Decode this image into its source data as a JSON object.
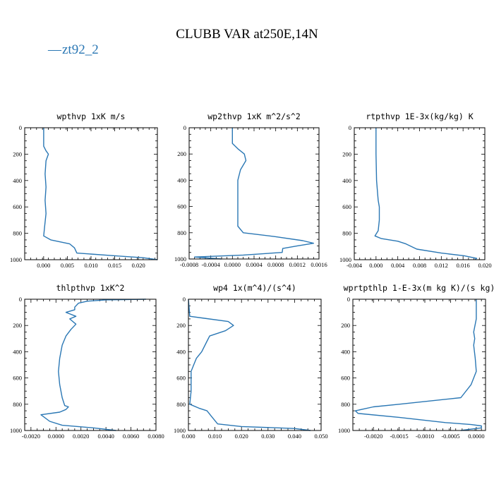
{
  "figure": {
    "title": "CLUBB VAR at250E,14N",
    "legend": {
      "symbol": "—",
      "label": "zt92_2",
      "color": "#2a77b4"
    }
  },
  "chart_data": [
    {
      "type": "line",
      "title": "wpthvp  1xK m/s",
      "xlim": [
        -0.004,
        0.024
      ],
      "xticks": [
        "0.000",
        "0.005",
        "0.010",
        "0.015",
        "0.020"
      ],
      "xtick_values": [
        0,
        0.005,
        0.01,
        0.015,
        0.02
      ],
      "ylim": [
        1000,
        0
      ],
      "yticks": [
        "0",
        "200",
        "400",
        "600",
        "800",
        "1000"
      ],
      "ytick_values": [
        0,
        200,
        400,
        600,
        800,
        1000
      ],
      "series": [
        {
          "x": [
            0,
            0,
            0.0005,
            0.001,
            0.0005,
            0.0003,
            0.0005,
            0.0003,
            0.0005,
            0.0002,
            0,
            0.0015,
            0.0055,
            0.0065,
            0.007,
            0.015,
            0.021,
            0.024
          ],
          "y": [
            0,
            140,
            175,
            200,
            250,
            350,
            450,
            550,
            650,
            750,
            820,
            850,
            880,
            910,
            950,
            970,
            985,
            1000
          ]
        }
      ]
    },
    {
      "type": "line",
      "title": "wp2thvp  1xK m^2/s^2",
      "xlim": [
        -0.0008,
        0.0016
      ],
      "xticks": [
        "-0.0008",
        "-0.0004",
        "0.0000",
        "0.0004",
        "0.0008",
        "0.0012",
        "0.0016"
      ],
      "xtick_values": [
        -0.0008,
        -0.0004,
        0,
        0.0004,
        0.0008,
        0.0012,
        0.0016
      ],
      "ylim": [
        1000,
        0
      ],
      "yticks": [
        "0",
        "200",
        "400",
        "600",
        "800",
        "1000"
      ],
      "ytick_values": [
        0,
        200,
        400,
        600,
        800,
        1000
      ],
      "series": [
        {
          "x": [
            0,
            0,
            0.0001,
            0.00022,
            0.00025,
            0.00015,
            0.0001,
            0.0001,
            0.0001,
            0.0001,
            0.0002,
            0.0008,
            0.0013,
            0.0015,
            0.0012,
            0.00093,
            0.00092,
            0.0002,
            -0.0007,
            -0.0002
          ],
          "y": [
            0,
            120,
            160,
            200,
            250,
            320,
            400,
            500,
            600,
            750,
            800,
            830,
            860,
            880,
            900,
            920,
            950,
            970,
            985,
            1000
          ]
        }
      ]
    },
    {
      "type": "line",
      "title": "rtpthvp  1E-3x(kg/kg) K",
      "xlim": [
        -0.004,
        0.02
      ],
      "xticks": [
        "-0.004",
        "0.000",
        "0.004",
        "0.008",
        "0.012",
        "0.016",
        "0.020"
      ],
      "xtick_values": [
        -0.004,
        0,
        0.004,
        0.008,
        0.012,
        0.016,
        0.02
      ],
      "ylim": [
        1000,
        0
      ],
      "yticks": [
        "0",
        "200",
        "400",
        "600",
        "800",
        "1000"
      ],
      "ytick_values": [
        0,
        200,
        400,
        600,
        800,
        1000
      ],
      "series": [
        {
          "x": [
            0,
            0,
            0.0001,
            0.0003,
            0.0004,
            0.0006,
            0.0006,
            0.0004,
            0.0001,
            -0.0002,
            0.001,
            0.004,
            0.0055,
            0.0075,
            0.012,
            0.0162,
            0.0185,
            0.0182
          ],
          "y": [
            0,
            200,
            400,
            500,
            550,
            600,
            700,
            780,
            800,
            820,
            840,
            860,
            880,
            920,
            950,
            970,
            990,
            1000
          ]
        }
      ]
    },
    {
      "type": "line",
      "title": "thlpthvp  1xK^2",
      "xlim": [
        -0.0025,
        0.008
      ],
      "xticks": [
        "-0.0020",
        "0.0000",
        "0.0020",
        "0.0040",
        "0.0060",
        "0.0080"
      ],
      "xtick_values": [
        -0.002,
        0,
        0.002,
        0.004,
        0.006,
        0.008
      ],
      "ylim": [
        1000,
        0
      ],
      "yticks": [
        "0",
        "200",
        "400",
        "600",
        "800",
        "1000"
      ],
      "ytick_values": [
        0,
        200,
        400,
        600,
        800,
        1000
      ],
      "series": [
        {
          "x": [
            0.0072,
            0.004,
            0.0025,
            0.0018,
            0.0015,
            0.0015,
            0.0008,
            0.0016,
            0.0011,
            0.0016,
            0.0012,
            0.0008,
            0.0005,
            0.0003,
            0.0002,
            0.0003,
            0.0005,
            0.0007,
            0.001,
            0.0008,
            0.0003,
            -0.0012,
            -0.0005,
            0.0005,
            0.003,
            0.0048
          ],
          "y": [
            0,
            5,
            15,
            30,
            60,
            80,
            100,
            130,
            150,
            190,
            230,
            280,
            350,
            450,
            550,
            650,
            750,
            810,
            820,
            840,
            860,
            880,
            930,
            960,
            980,
            1000
          ]
        }
      ]
    },
    {
      "type": "line",
      "title": "wp4  1x(m^4)/(s^4)",
      "xlim": [
        0,
        0.05
      ],
      "xticks": [
        "0.000",
        "0.010",
        "0.020",
        "0.030",
        "0.040",
        "0.050"
      ],
      "xtick_values": [
        0,
        0.01,
        0.02,
        0.03,
        0.04,
        0.05
      ],
      "ylim": [
        1000,
        0
      ],
      "yticks": [
        "0",
        "200",
        "400",
        "600",
        "800",
        "1000"
      ],
      "ytick_values": [
        0,
        200,
        400,
        600,
        800,
        1000
      ],
      "series": [
        {
          "x": [
            0,
            0.0005,
            0.006,
            0.015,
            0.017,
            0.014,
            0.008,
            0.007,
            0.005,
            0.003,
            0.002,
            0.001,
            0.001,
            0.001,
            0.0005,
            0.004,
            0.007,
            0.009,
            0.011,
            0.02,
            0.04,
            0.046
          ],
          "y": [
            0,
            130,
            145,
            170,
            200,
            240,
            280,
            320,
            400,
            450,
            500,
            550,
            600,
            700,
            800,
            830,
            850,
            900,
            950,
            970,
            985,
            1000
          ]
        }
      ]
    },
    {
      "type": "line",
      "title": "wprtpthlp  1-E-3x(m kg K)/(s kg)",
      "xlim": [
        -0.0024,
        0.00018
      ],
      "xticks": [
        "-0.0020",
        "-0.0015",
        "-0.0010",
        "-0.0005",
        "0.0000"
      ],
      "xtick_values": [
        -0.002,
        -0.0015,
        -0.001,
        -0.0005,
        0
      ],
      "ylim": [
        1000,
        0
      ],
      "yticks": [
        "0",
        "200",
        "400",
        "600",
        "800",
        "1000"
      ],
      "ytick_values": [
        0,
        200,
        400,
        600,
        800,
        1000
      ],
      "series": [
        {
          "x": [
            0,
            0,
            -5e-05,
            -3e-05,
            -5e-05,
            -2e-05,
            0,
            -0.0001,
            -0.0003,
            -0.0015,
            -0.002,
            -0.00235,
            -0.0023,
            -0.0015,
            -0.0006,
            -0.0001,
            0.0001,
            0.0001,
            -0.0001,
            -0.0003
          ],
          "y": [
            0,
            150,
            250,
            300,
            350,
            450,
            550,
            650,
            750,
            800,
            820,
            850,
            870,
            900,
            940,
            955,
            965,
            980,
            990,
            1000
          ]
        }
      ]
    }
  ]
}
